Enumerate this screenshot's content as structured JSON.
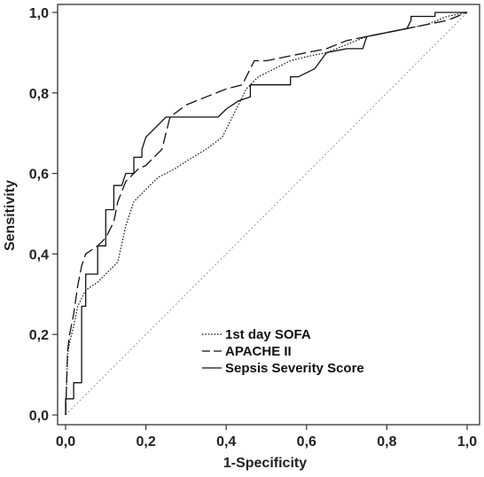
{
  "chart_data": {
    "type": "line",
    "title": "",
    "xlabel": "1-Specificity",
    "ylabel": "Sensitivity",
    "xlim": [
      0,
      1
    ],
    "ylim": [
      0,
      1
    ],
    "x_ticks": [
      "0,0",
      "0,2",
      "0,4",
      "0,6",
      "0,8",
      "1,0"
    ],
    "y_ticks": [
      "0,0",
      "0,2",
      "0,4",
      "0,6",
      "0,8",
      "1,0"
    ],
    "grid": false,
    "legend_position": "lower-right",
    "reference_line": {
      "style": "dotted",
      "color": "#999999",
      "x": [
        0,
        1
      ],
      "y": [
        0,
        1
      ]
    },
    "series": [
      {
        "name": "1st day SOFA",
        "style": "dotted",
        "color": "#111111",
        "x": [
          0,
          0.005,
          0.01,
          0.02,
          0.03,
          0.05,
          0.08,
          0.1,
          0.13,
          0.15,
          0.17,
          0.2,
          0.23,
          0.27,
          0.3,
          0.35,
          0.39,
          0.42,
          0.45,
          0.48,
          0.52,
          0.56,
          0.6,
          0.65,
          0.7,
          0.75,
          0.8,
          0.85,
          0.9,
          0.95,
          1
        ],
        "y": [
          0,
          0.15,
          0.18,
          0.22,
          0.27,
          0.31,
          0.33,
          0.35,
          0.38,
          0.47,
          0.53,
          0.56,
          0.59,
          0.61,
          0.63,
          0.66,
          0.69,
          0.75,
          0.81,
          0.84,
          0.86,
          0.88,
          0.89,
          0.9,
          0.92,
          0.94,
          0.95,
          0.96,
          0.97,
          0.99,
          1
        ]
      },
      {
        "name": "APACHE II",
        "style": "dashed",
        "color": "#111111",
        "x": [
          0,
          0.005,
          0.01,
          0.02,
          0.03,
          0.04,
          0.05,
          0.08,
          0.1,
          0.12,
          0.13,
          0.15,
          0.18,
          0.2,
          0.22,
          0.24,
          0.26,
          0.3,
          0.35,
          0.4,
          0.44,
          0.47,
          0.5,
          0.55,
          0.6,
          0.65,
          0.7,
          0.75,
          0.8,
          0.85,
          0.9,
          0.95,
          1
        ],
        "y": [
          0,
          0.16,
          0.2,
          0.25,
          0.32,
          0.37,
          0.4,
          0.42,
          0.44,
          0.48,
          0.53,
          0.58,
          0.61,
          0.62,
          0.64,
          0.66,
          0.74,
          0.77,
          0.79,
          0.81,
          0.82,
          0.88,
          0.88,
          0.89,
          0.9,
          0.91,
          0.93,
          0.94,
          0.95,
          0.96,
          0.97,
          0.98,
          1
        ]
      },
      {
        "name": "Sepsis Severity Score",
        "style": "solid",
        "color": "#111111",
        "x": [
          0,
          0,
          0.02,
          0.02,
          0.04,
          0.04,
          0.05,
          0.05,
          0.08,
          0.08,
          0.1,
          0.1,
          0.12,
          0.12,
          0.14,
          0.15,
          0.17,
          0.17,
          0.19,
          0.19,
          0.2,
          0.23,
          0.25,
          0.27,
          0.3,
          0.33,
          0.38,
          0.4,
          0.43,
          0.46,
          0.46,
          0.48,
          0.54,
          0.56,
          0.56,
          0.58,
          0.62,
          0.65,
          0.7,
          0.74,
          0.75,
          0.8,
          0.85,
          0.86,
          0.86,
          0.92,
          0.92,
          1
        ],
        "y": [
          0,
          0.04,
          0.04,
          0.08,
          0.08,
          0.27,
          0.27,
          0.35,
          0.35,
          0.42,
          0.42,
          0.51,
          0.51,
          0.57,
          0.57,
          0.6,
          0.6,
          0.64,
          0.64,
          0.66,
          0.69,
          0.72,
          0.74,
          0.74,
          0.74,
          0.74,
          0.74,
          0.76,
          0.78,
          0.79,
          0.82,
          0.82,
          0.82,
          0.82,
          0.84,
          0.84,
          0.86,
          0.9,
          0.91,
          0.91,
          0.94,
          0.95,
          0.96,
          0.98,
          0.99,
          0.99,
          1,
          1
        ]
      }
    ]
  }
}
